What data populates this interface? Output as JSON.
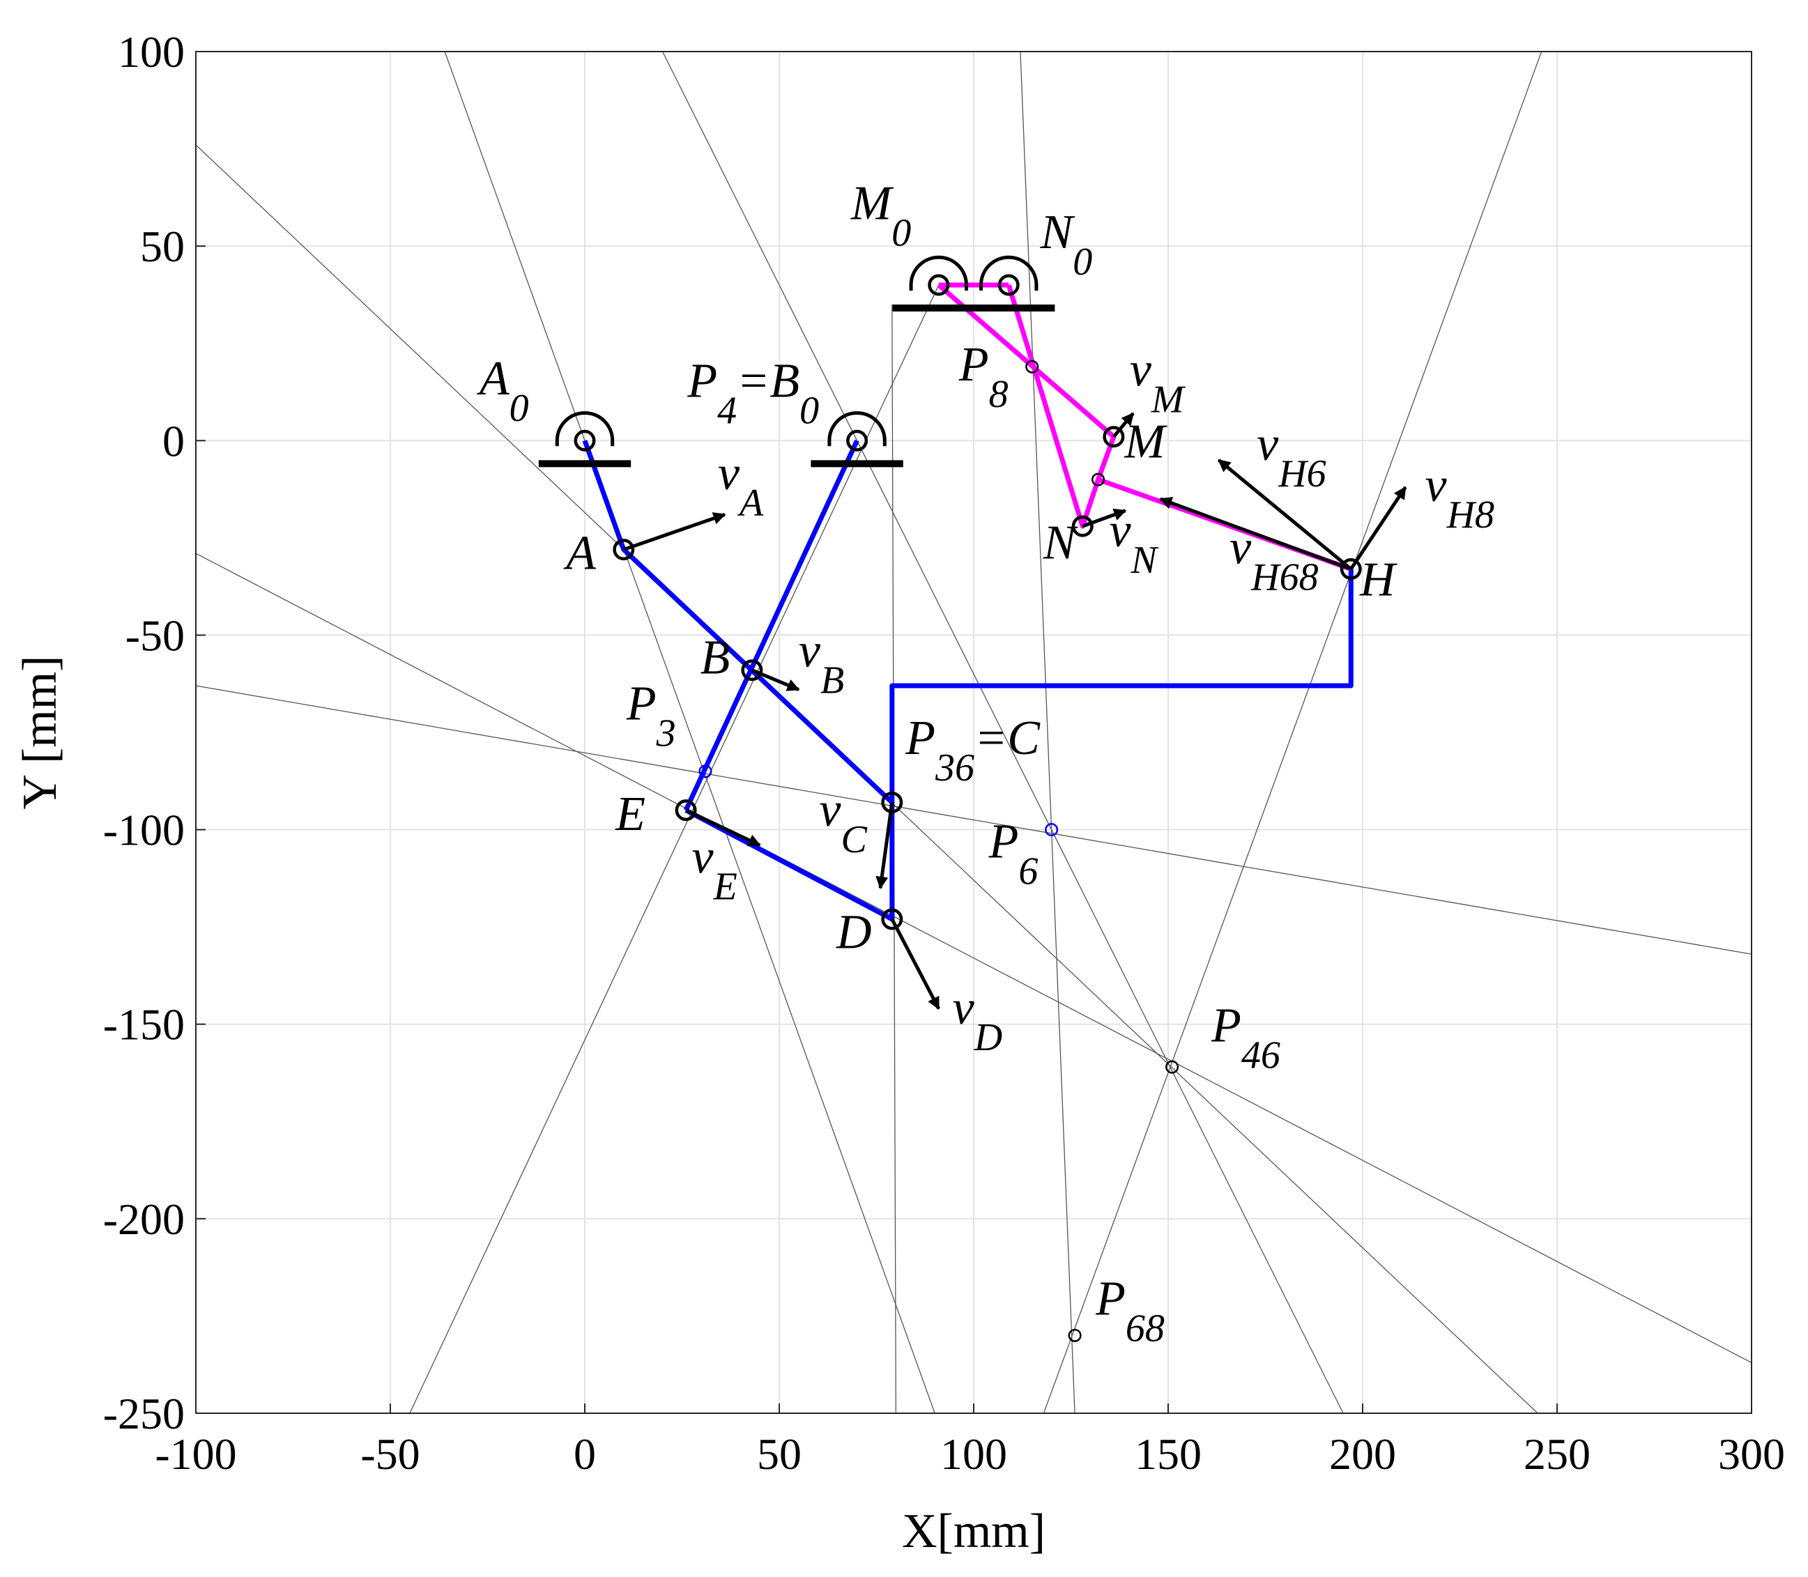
{
  "chart_data": {
    "type": "mechanism",
    "xlabel": "X[mm]",
    "ylabel": "Y [mm]",
    "xlim": [
      -100,
      300
    ],
    "ylim": [
      -250,
      100
    ],
    "xticks": [
      -100,
      -50,
      0,
      50,
      100,
      150,
      200,
      250,
      300
    ],
    "yticks": [
      100,
      50,
      0,
      -50,
      -100,
      -150,
      -200,
      -250
    ],
    "grid": true,
    "construction_lines": [
      {
        "x": [
          -100,
          245
        ],
        "y": [
          76,
          -250
        ]
      },
      {
        "x": [
          -100,
          300
        ],
        "y": [
          -29,
          -237
        ]
      },
      {
        "x": [
          -100,
          300
        ],
        "y": [
          -63,
          -132
        ]
      },
      {
        "x": [
          -36,
          90
        ],
        "y": [
          100,
          -250
        ]
      },
      {
        "x": [
          20,
          195
        ],
        "y": [
          100,
          -250
        ]
      },
      {
        "x": [
          -45,
          91
        ],
        "y": [
          -250,
          40
        ]
      },
      {
        "x": [
          80,
          79
        ],
        "y": [
          -250,
          35
        ]
      },
      {
        "x": [
          112,
          126
        ],
        "y": [
          100,
          -250
        ]
      },
      {
        "x": [
          246,
          118
        ],
        "y": [
          100,
          -250
        ]
      }
    ],
    "links": [
      {
        "color": "#0000ff",
        "x": [
          0,
          10,
          79
        ],
        "y": [
          0,
          -28,
          -93
        ]
      },
      {
        "color": "#0000ff",
        "x": [
          70,
          26
        ],
        "y": [
          0,
          -95
        ]
      },
      {
        "color": "#0000ff",
        "x": [
          26,
          79,
          79,
          79,
          197,
          197
        ],
        "y": [
          -95,
          -123,
          -93,
          -63,
          -63,
          -33
        ]
      },
      {
        "color": "#ff00ff",
        "x": [
          91,
          109
        ],
        "y": [
          40,
          40
        ]
      },
      {
        "color": "#ff00ff",
        "x": [
          91,
          136,
          132,
          128,
          109
        ],
        "y": [
          40,
          1,
          -10,
          -22,
          40
        ]
      },
      {
        "color": "#ff00ff",
        "x": [
          132,
          197
        ],
        "y": [
          -10,
          -33
        ]
      }
    ],
    "points": [
      {
        "label": [
          "A",
          "0"
        ],
        "x": 0,
        "y": 0,
        "ground": true,
        "color": "#000000"
      },
      {
        "label": [
          "A"
        ],
        "x": 10,
        "y": -28,
        "color": "#000000"
      },
      {
        "label": [
          "B"
        ],
        "x": 43,
        "y": -59,
        "color": "#000000"
      },
      {
        "label": [
          "P",
          "4",
          "=B",
          "0"
        ],
        "x": 70,
        "y": 0,
        "ground": true,
        "color": "#000000"
      },
      {
        "label": [
          "P",
          "36",
          "=C"
        ],
        "x": 79,
        "y": -93,
        "color": "#000000"
      },
      {
        "label": [
          "D"
        ],
        "x": 79,
        "y": -123,
        "color": "#000000"
      },
      {
        "label": [
          "E"
        ],
        "x": 26,
        "y": -95,
        "color": "#000000"
      },
      {
        "label": [
          "P",
          "3"
        ],
        "x": 31,
        "y": -85,
        "marker": "small",
        "color": "#0000ff"
      },
      {
        "label": [
          "P",
          "6"
        ],
        "x": 120,
        "y": -100,
        "marker": "small",
        "color": "#0000ff"
      },
      {
        "label": [
          "P",
          "8"
        ],
        "x": 115,
        "y": 19,
        "marker": "small",
        "color": "#000000"
      },
      {
        "label": [
          "M"
        ],
        "x": 136,
        "y": 1,
        "color": "#000000"
      },
      {
        "label": [
          "N"
        ],
        "x": 128,
        "y": -22,
        "color": "#000000"
      },
      {
        "label": [
          "M",
          "0"
        ],
        "x": 91,
        "y": 40,
        "ground": true,
        "color": "#000000"
      },
      {
        "label": [
          "N",
          "0"
        ],
        "x": 109,
        "y": 40,
        "ground": true,
        "color": "#000000"
      },
      {
        "label": [
          "H"
        ],
        "x": 197,
        "y": -33,
        "color": "#000000"
      },
      {
        "label": [
          "P",
          "46"
        ],
        "x": 151,
        "y": -161,
        "marker": "small",
        "color": "#000000"
      },
      {
        "label": [
          "P",
          "68"
        ],
        "x": 126,
        "y": -230,
        "marker": "small",
        "color": "#000000"
      },
      {
        "x": 132,
        "y": -10,
        "marker": "small",
        "color": "#000000"
      }
    ],
    "velocities": [
      {
        "label": [
          "v",
          "A"
        ],
        "x": [
          10,
          36
        ],
        "y": [
          -28,
          -19
        ]
      },
      {
        "label": [
          "v",
          "B"
        ],
        "x": [
          43,
          55
        ],
        "y": [
          -59,
          -64
        ]
      },
      {
        "label": [
          "v",
          "C"
        ],
        "x": [
          79,
          76
        ],
        "y": [
          -93,
          -115
        ]
      },
      {
        "label": [
          "v",
          "D"
        ],
        "x": [
          79,
          91
        ],
        "y": [
          -123,
          -146
        ]
      },
      {
        "label": [
          "v",
          "E"
        ],
        "x": [
          26,
          45
        ],
        "y": [
          -95,
          -104
        ]
      },
      {
        "label": [
          "v",
          "M"
        ],
        "x": [
          136,
          141
        ],
        "y": [
          1,
          7
        ]
      },
      {
        "label": [
          "v",
          "N"
        ],
        "x": [
          128,
          139
        ],
        "y": [
          -22,
          -18
        ]
      },
      {
        "label": [
          "v",
          "H6"
        ],
        "x": [
          197,
          163
        ],
        "y": [
          -33,
          -5
        ]
      },
      {
        "label": [
          "v",
          "H8"
        ],
        "x": [
          197,
          211
        ],
        "y": [
          -33,
          -12
        ]
      },
      {
        "label": [
          "v",
          "H68"
        ],
        "x": [
          197,
          148
        ],
        "y": [
          -33,
          -15
        ]
      }
    ]
  }
}
